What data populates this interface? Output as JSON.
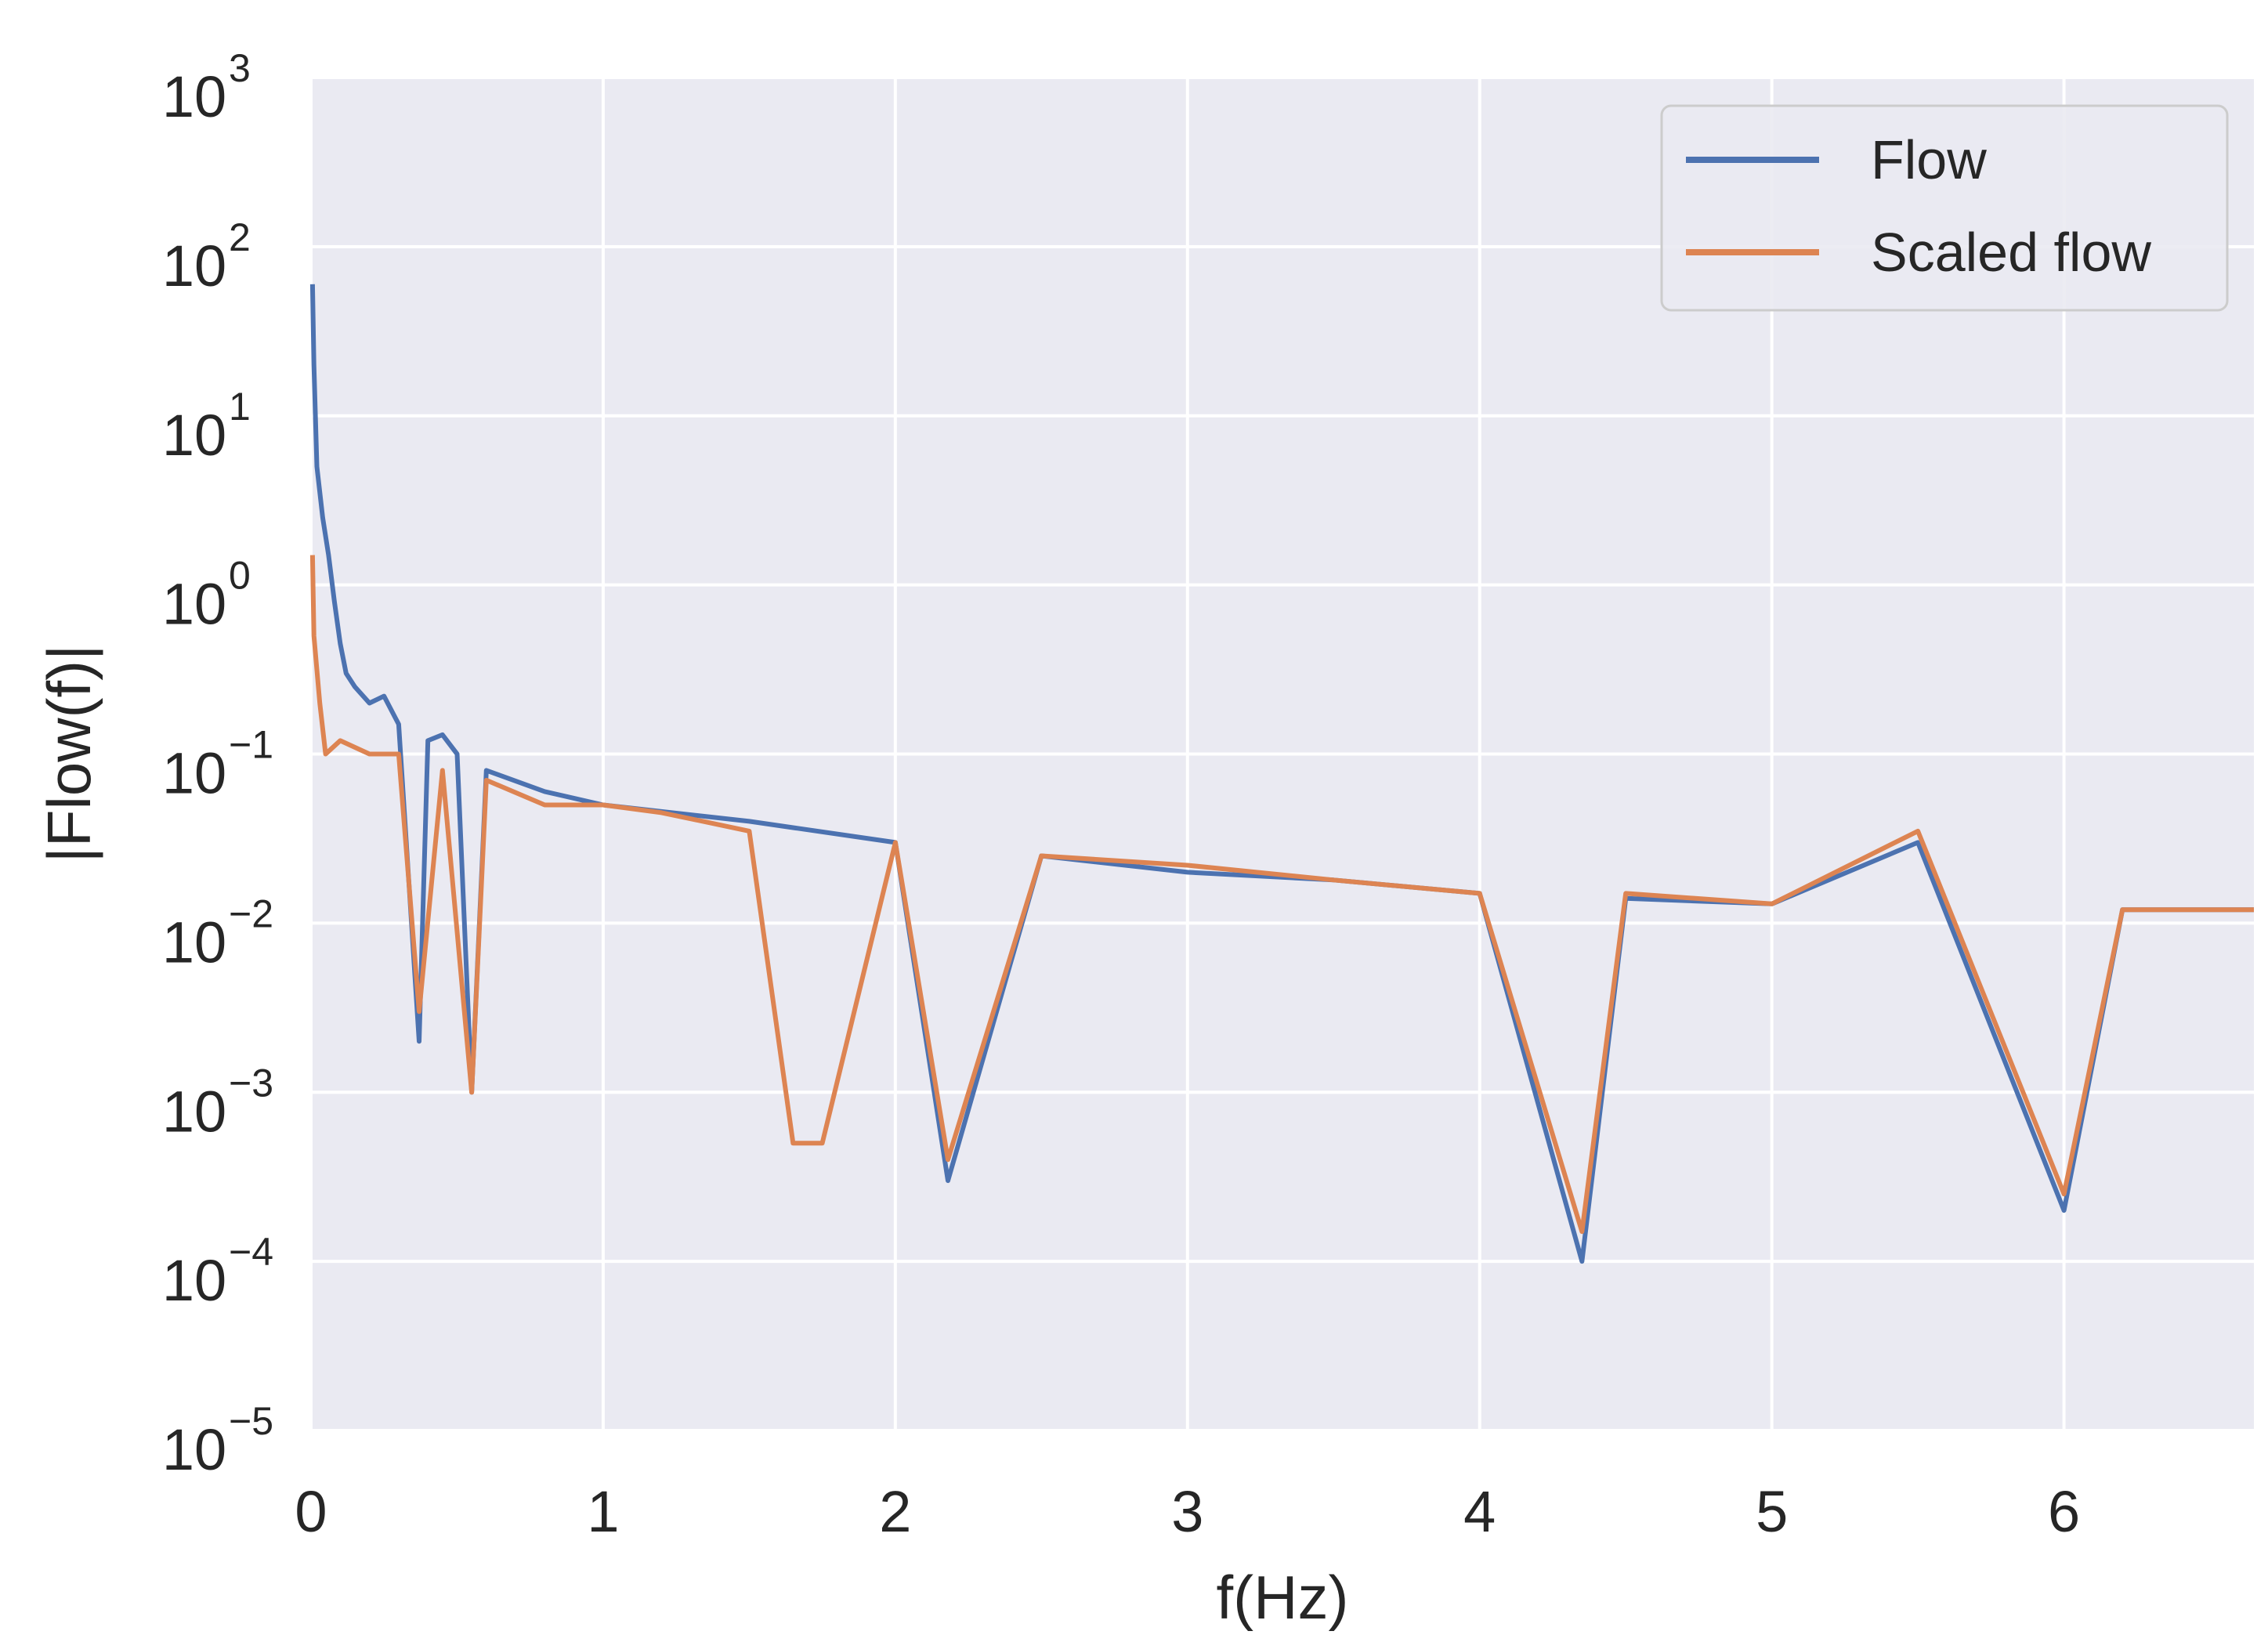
{
  "chart_data": {
    "type": "line",
    "xlabel": "f(Hz)",
    "ylabel": "|Flow(f)|",
    "xscale": "linear",
    "yscale": "log",
    "xlim": [
      0,
      6.65
    ],
    "ylim": [
      1e-05,
      1000
    ],
    "grid": true,
    "background": "#eaeaf2",
    "legend_position": "top-right",
    "x_ticks": [
      0,
      1,
      2,
      3,
      4,
      5,
      6
    ],
    "x_tick_labels": [
      "0",
      "1",
      "2",
      "3",
      "4",
      "5",
      "6"
    ],
    "y_ticks": [
      {
        "value": 1e-05,
        "base": "10",
        "exp": "−5"
      },
      {
        "value": 0.0001,
        "base": "10",
        "exp": "−4"
      },
      {
        "value": 0.001,
        "base": "10",
        "exp": "−3"
      },
      {
        "value": 0.01,
        "base": "10",
        "exp": "−2"
      },
      {
        "value": 0.1,
        "base": "10",
        "exp": "−1"
      },
      {
        "value": 1,
        "base": "10",
        "exp": "0"
      },
      {
        "value": 10,
        "base": "10",
        "exp": "1"
      },
      {
        "value": 100,
        "base": "10",
        "exp": "2"
      },
      {
        "value": 1000,
        "base": "10",
        "exp": "3"
      }
    ],
    "series": [
      {
        "name": "Flow",
        "color": "#4c72b0",
        "points": [
          [
            0.005,
            60
          ],
          [
            0.01,
            20
          ],
          [
            0.02,
            5
          ],
          [
            0.04,
            2.5
          ],
          [
            0.06,
            1.5
          ],
          [
            0.08,
            0.8
          ],
          [
            0.1,
            0.45
          ],
          [
            0.12,
            0.3
          ],
          [
            0.15,
            0.25
          ],
          [
            0.2,
            0.2
          ],
          [
            0.25,
            0.22
          ],
          [
            0.3,
            0.15
          ],
          [
            0.37,
            0.002
          ],
          [
            0.4,
            0.12
          ],
          [
            0.45,
            0.13
          ],
          [
            0.5,
            0.1
          ],
          [
            0.55,
            0.001
          ],
          [
            0.6,
            0.08
          ],
          [
            0.8,
            0.06
          ],
          [
            1.0,
            0.05
          ],
          [
            1.5,
            0.04
          ],
          [
            2.0,
            0.03
          ],
          [
            2.18,
            0.0003
          ],
          [
            2.5,
            0.025
          ],
          [
            3.0,
            0.02
          ],
          [
            3.5,
            0.018
          ],
          [
            4.0,
            0.015
          ],
          [
            4.35,
            0.0001
          ],
          [
            4.5,
            0.014
          ],
          [
            5.0,
            0.013
          ],
          [
            5.5,
            0.03
          ],
          [
            6.0,
            0.0002
          ],
          [
            6.2,
            0.012
          ],
          [
            6.65,
            0.012
          ]
        ]
      },
      {
        "name": "Scaled flow",
        "color": "#dd8452",
        "points": [
          [
            0.005,
            1.5
          ],
          [
            0.01,
            0.5
          ],
          [
            0.03,
            0.2
          ],
          [
            0.05,
            0.1
          ],
          [
            0.1,
            0.12
          ],
          [
            0.2,
            0.1
          ],
          [
            0.3,
            0.1
          ],
          [
            0.37,
            0.003
          ],
          [
            0.45,
            0.08
          ],
          [
            0.55,
            0.001
          ],
          [
            0.6,
            0.07
          ],
          [
            0.8,
            0.05
          ],
          [
            1.0,
            0.05
          ],
          [
            1.2,
            0.045
          ],
          [
            1.5,
            0.035
          ],
          [
            1.65,
            0.0005
          ],
          [
            1.75,
            0.0005
          ],
          [
            2.0,
            0.03
          ],
          [
            2.18,
            0.0004
          ],
          [
            2.5,
            0.025
          ],
          [
            3.0,
            0.022
          ],
          [
            3.5,
            0.018
          ],
          [
            4.0,
            0.015
          ],
          [
            4.35,
            0.00015
          ],
          [
            4.5,
            0.015
          ],
          [
            5.0,
            0.013
          ],
          [
            5.5,
            0.035
          ],
          [
            6.0,
            0.00025
          ],
          [
            6.2,
            0.012
          ],
          [
            6.65,
            0.012
          ]
        ]
      }
    ]
  }
}
